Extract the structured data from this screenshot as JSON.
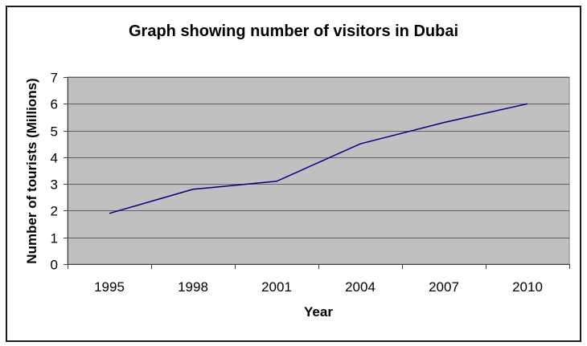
{
  "chart_data": {
    "type": "line",
    "title": "Graph showing number of visitors in Dubai",
    "xlabel": "Year",
    "ylabel": "Number of tourists (Millions)",
    "categories": [
      "1995",
      "1998",
      "2001",
      "2004",
      "2007",
      "2010"
    ],
    "series": [
      {
        "name": "Visitors",
        "values": [
          1.9,
          2.8,
          3.1,
          4.5,
          5.3,
          6.0
        ],
        "color": "#000080"
      }
    ],
    "ylim": [
      0,
      7
    ],
    "yticks": [
      0,
      1,
      2,
      3,
      4,
      5,
      6,
      7
    ],
    "grid": true,
    "legend": null,
    "plot_background": "#c0c0c0",
    "gridline_color": "#606060"
  }
}
